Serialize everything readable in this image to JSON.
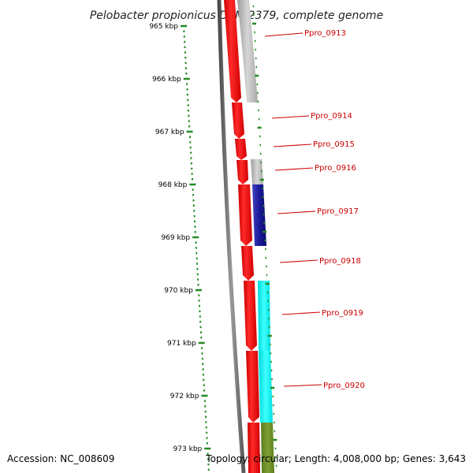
{
  "title": "Pelobacter propionicus DSM 2379, complete genome",
  "accession": "Accession: NC_008609",
  "topology": "Topology: circular; Length: 4,008,000 bp; Genes: 3,643",
  "ruler": {
    "labels": [
      "965 kbp",
      "966 kbp",
      "967 kbp",
      "968 kbp",
      "969 kbp",
      "970 kbp",
      "971 kbp",
      "972 kbp",
      "973 kbp"
    ],
    "color": "#228b22"
  },
  "genes": [
    {
      "id": "Ppro_0913",
      "cog_color": "#c0c0c0"
    },
    {
      "id": "Ppro_0914",
      "cog_color": "#ffffff"
    },
    {
      "id": "Ppro_0915",
      "cog_color": "#ffffff"
    },
    {
      "id": "Ppro_0916",
      "cog_color": "#c0c0c0"
    },
    {
      "id": "Ppro_0917",
      "cog_color": "#1a1a99"
    },
    {
      "id": "Ppro_0918",
      "cog_color": "#ffffff"
    },
    {
      "id": "Ppro_0919",
      "cog_color": "#00ffff"
    },
    {
      "id": "Ppro_0920",
      "cog_color": "#00ffff"
    }
  ],
  "colors": {
    "gene": "#ff0000",
    "label": "#cc0000",
    "backbone": "#707070",
    "olive": "#6b8e23"
  }
}
